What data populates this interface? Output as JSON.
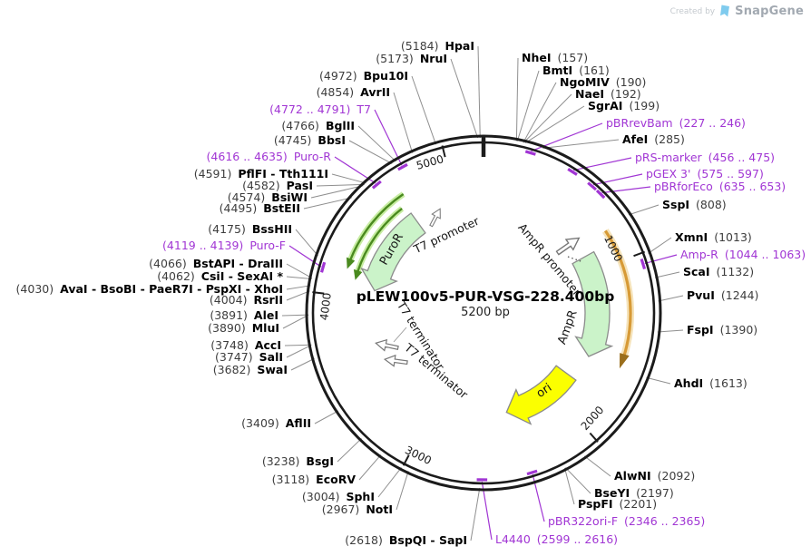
{
  "watermark": {
    "created_by": "Created by",
    "brand": "SnapGene"
  },
  "plasmid": {
    "title": "pLEW100v5-PUR-VSG-228.400bp",
    "size_label": "5200 bp",
    "total_bp": 5200
  },
  "colors": {
    "enzyme_name": "#000000",
    "position_text": "#3d3d3d",
    "primer": "#A136D4",
    "backbone": "#1b1b1b",
    "callout": "#8f8f8f",
    "cds_fill": "#CBF3C9",
    "cds_stroke": "#8C8C8C",
    "ori_fill": "#FBFF00",
    "orf_arc": "#D79A36",
    "orf_head": "#9A6E1C",
    "gene_arc": "#4A8A1F",
    "gene_glow": "#C6ECA0",
    "logo_blue": "#7FCBEE"
  },
  "ticks": [
    "1000",
    "2000",
    "3000",
    "4000",
    "5000"
  ],
  "sites": [
    {
      "pos": "(5184)",
      "name": "HpaI",
      "kind": "enzyme"
    },
    {
      "pos": "(5173)",
      "name": "NruI",
      "kind": "enzyme"
    },
    {
      "pos": "(4972)",
      "name": "Bpu10I",
      "kind": "enzyme"
    },
    {
      "pos": "(4854)",
      "name": "AvrII",
      "kind": "enzyme"
    },
    {
      "pos": "(4772 .. 4791)",
      "name": "T7",
      "kind": "primer"
    },
    {
      "pos": "(4766)",
      "name": "BglII",
      "kind": "enzyme"
    },
    {
      "pos": "(4745)",
      "name": "BbsI",
      "kind": "enzyme"
    },
    {
      "pos": "(4616 .. 4635)",
      "name": "Puro-R",
      "kind": "primer"
    },
    {
      "pos": "(4591)",
      "name": "PflFI - Tth111I",
      "kind": "enzyme"
    },
    {
      "pos": "(4582)",
      "name": "PasI",
      "kind": "enzyme"
    },
    {
      "pos": "(4574)",
      "name": "BsiWI",
      "kind": "enzyme"
    },
    {
      "pos": "(4495)",
      "name": "BstEII",
      "kind": "enzyme"
    },
    {
      "pos": "(4175)",
      "name": "BssHII",
      "kind": "enzyme"
    },
    {
      "pos": "(4119 .. 4139)",
      "name": "Puro-F",
      "kind": "primer"
    },
    {
      "pos": "(4066)",
      "name": "BstAPI - DraIII",
      "kind": "enzyme"
    },
    {
      "pos": "(4062)",
      "name": "CsiI - SexAI *",
      "kind": "enzyme"
    },
    {
      "pos": "(4030)",
      "name": "AvaI - BsoBI - PaeR7I - PspXI - XhoI",
      "kind": "enzyme"
    },
    {
      "pos": "(4004)",
      "name": "RsrII",
      "kind": "enzyme"
    },
    {
      "pos": "(3891)",
      "name": "AleI",
      "kind": "enzyme"
    },
    {
      "pos": "(3890)",
      "name": "MluI",
      "kind": "enzyme"
    },
    {
      "pos": "(3748)",
      "name": "AccI",
      "kind": "enzyme"
    },
    {
      "pos": "(3747)",
      "name": "SalI",
      "kind": "enzyme"
    },
    {
      "pos": "(3682)",
      "name": "SwaI",
      "kind": "enzyme"
    },
    {
      "pos": "(3409)",
      "name": "AflII",
      "kind": "enzyme"
    },
    {
      "pos": "(3238)",
      "name": "BsgI",
      "kind": "enzyme"
    },
    {
      "pos": "(3118)",
      "name": "EcoRV",
      "kind": "enzyme"
    },
    {
      "pos": "(3004)",
      "name": "SphI",
      "kind": "enzyme"
    },
    {
      "pos": "(2967)",
      "name": "NotI",
      "kind": "enzyme"
    },
    {
      "pos": "(2618)",
      "name": "BspQI - SapI",
      "kind": "enzyme"
    },
    {
      "pos": "(2599 .. 2616)",
      "name": "L4440",
      "kind": "primer"
    },
    {
      "pos": "(157)",
      "name": "NheI",
      "kind": "enzyme"
    },
    {
      "pos": "(161)",
      "name": "BmtI",
      "kind": "enzyme"
    },
    {
      "pos": "(190)",
      "name": "NgoMIV",
      "kind": "enzyme"
    },
    {
      "pos": "(192)",
      "name": "NaeI",
      "kind": "enzyme"
    },
    {
      "pos": "(199)",
      "name": "SgrAI",
      "kind": "enzyme"
    },
    {
      "pos": "(227 .. 246)",
      "name": "pBRrevBam",
      "kind": "primer"
    },
    {
      "pos": "(285)",
      "name": "AfeI",
      "kind": "enzyme"
    },
    {
      "pos": "(456 .. 475)",
      "name": "pRS-marker",
      "kind": "primer"
    },
    {
      "pos": "(575 .. 597)",
      "name": "pGEX 3'",
      "kind": "primer"
    },
    {
      "pos": "(635 .. 653)",
      "name": "pBRforEco",
      "kind": "primer"
    },
    {
      "pos": "(808)",
      "name": "SspI",
      "kind": "enzyme"
    },
    {
      "pos": "(1013)",
      "name": "XmnI",
      "kind": "enzyme"
    },
    {
      "pos": "(1044 .. 1063)",
      "name": "Amp-R",
      "kind": "primer"
    },
    {
      "pos": "(1132)",
      "name": "ScaI",
      "kind": "enzyme"
    },
    {
      "pos": "(1244)",
      "name": "PvuI",
      "kind": "enzyme"
    },
    {
      "pos": "(1390)",
      "name": "FspI",
      "kind": "enzyme"
    },
    {
      "pos": "(1613)",
      "name": "AhdI",
      "kind": "enzyme"
    },
    {
      "pos": "(2092)",
      "name": "AlwNI",
      "kind": "enzyme"
    },
    {
      "pos": "(2197)",
      "name": "BseYI",
      "kind": "enzyme"
    },
    {
      "pos": "(2201)",
      "name": "PspFI",
      "kind": "enzyme"
    },
    {
      "pos": "(2346 .. 2365)",
      "name": "pBR322ori-F",
      "kind": "primer"
    }
  ],
  "features": [
    {
      "label": "PuroR",
      "kind": "cds"
    },
    {
      "label": "T7 promoter",
      "kind": "promoter"
    },
    {
      "label": "AmpR promoter",
      "kind": "promoter"
    },
    {
      "label": "AmpR",
      "kind": "cds"
    },
    {
      "label": "ori",
      "kind": "origin"
    },
    {
      "label": "T7 terminator",
      "kind": "terminator"
    },
    {
      "label": "T7 terminator",
      "kind": "terminator"
    }
  ]
}
